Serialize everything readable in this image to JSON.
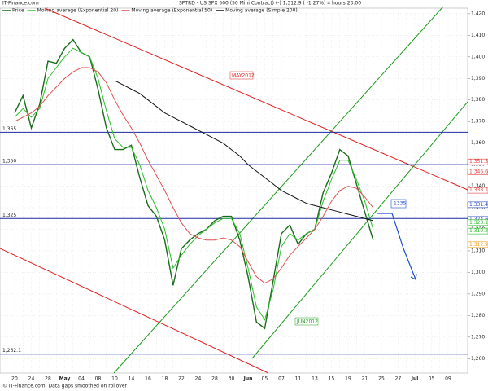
{
  "chart_data": {
    "type": "line",
    "title": "SPTRD - US SPX 500 (50 Mini Contract) (-)    1,312.9 ( -1.27%)    4 hours  23:00",
    "source": "IT-Finance.com",
    "footer": "© IT-Finance.com. Data gaps smoothed on rollover",
    "categories": [
      "20",
      null,
      "24",
      null,
      "28",
      null,
      "May",
      null,
      "04",
      null,
      "08",
      null,
      "10",
      null,
      "14",
      null,
      "16",
      null,
      "18",
      null,
      "22",
      null,
      "24",
      null,
      "28",
      null,
      "30",
      null,
      "Jun",
      null,
      "05",
      null,
      "07",
      null,
      "11",
      null,
      "13",
      null,
      "15",
      null,
      "19",
      null,
      "21",
      null,
      "25",
      null,
      "27",
      null,
      "Jul",
      null,
      "05",
      null,
      "09",
      null
    ],
    "series": [
      {
        "name": "Price",
        "color": "#1a6b1a",
        "values": [
          1374,
          1382,
          1367,
          1378,
          1398,
          1397,
          1404,
          1408,
          1402,
          1400,
          1385,
          1367,
          1357,
          1357,
          1359,
          1344,
          1331,
          1326,
          1315,
          1294,
          1311,
          1315,
          1318,
          1320,
          1324,
          1326,
          1326,
          1315,
          1298,
          1277,
          1274,
          1296,
          1318,
          1322,
          1313,
          1318,
          1320,
          1337,
          1346,
          1357,
          1354,
          1341,
          1328,
          1315,
          null,
          null,
          null,
          null,
          null,
          null,
          null,
          null,
          null,
          null
        ]
      },
      {
        "name": "Moving average (Exponential 20)",
        "color": "#2bbd2b",
        "values": [
          1372,
          1376,
          1372,
          1376,
          1390,
          1395,
          1400,
          1404,
          1402,
          1400,
          1390,
          1375,
          1362,
          1358,
          1358,
          1350,
          1338,
          1330,
          1320,
          1302,
          1308,
          1313,
          1317,
          1320,
          1323,
          1325,
          1325,
          1318,
          1302,
          1284,
          1278,
          1292,
          1312,
          1318,
          1315,
          1318,
          1320,
          1333,
          1343,
          1352,
          1352,
          1343,
          1333,
          1320,
          null,
          null,
          null,
          null,
          null,
          null,
          null,
          null,
          null,
          null
        ]
      },
      {
        "name": "Moving average (Exponential 50)",
        "color": "#e05050",
        "values": [
          1370,
          1372,
          1374,
          1377,
          1382,
          1386,
          1390,
          1393,
          1395,
          1395,
          1393,
          1388,
          1380,
          1373,
          1367,
          1360,
          1352,
          1345,
          1338,
          1330,
          1323,
          1318,
          1316,
          1315,
          1315,
          1316,
          1315,
          1312,
          1305,
          1298,
          1295,
          1297,
          1302,
          1308,
          1312,
          1316,
          1320,
          1326,
          1333,
          1338,
          1340,
          1339,
          1335,
          1330,
          null,
          null,
          null,
          null,
          null,
          null,
          null,
          null,
          null,
          null
        ]
      },
      {
        "name": "Moving average (Simple 200)",
        "color": "#111111",
        "values": [
          null,
          null,
          null,
          null,
          null,
          null,
          null,
          null,
          null,
          null,
          null,
          null,
          1389,
          1387,
          1385,
          1383,
          1380,
          1377,
          1374,
          1372,
          1370,
          1368,
          1366,
          1364,
          1362,
          1360,
          1357,
          1354,
          1350,
          1347,
          1344,
          1341,
          1338,
          1336,
          1334,
          1332,
          1331,
          1330,
          1329,
          1328,
          1327,
          1326,
          1325,
          1324,
          null,
          null,
          null,
          null,
          null,
          null,
          null,
          null,
          null,
          null
        ]
      }
    ],
    "levels": [
      {
        "value": 1365,
        "label": "1,365"
      },
      {
        "value": 1350,
        "label": "1,350"
      },
      {
        "value": 1325,
        "label": "1,325"
      },
      {
        "value": 1262.1,
        "label": "1,262.1"
      }
    ],
    "price_tags": [
      {
        "value": 1351.3,
        "label": "1,351.3",
        "color": "#e04040"
      },
      {
        "value": 1346.6,
        "label": "1,346.6",
        "color": "#e04040"
      },
      {
        "value": 1338.1,
        "label": "1,338.1",
        "color": "#e04040"
      },
      {
        "value": 1331.4,
        "label": "1,331.4",
        "color": "#3050c0"
      },
      {
        "value": 1324.6,
        "label": "1,324.6",
        "color": "#3050c0"
      },
      {
        "value": 1323.1,
        "label": "1,323.1",
        "color": "#2bbd2b"
      },
      {
        "value": 1319.2,
        "label": "1,319.2",
        "color": "#2bbd2b"
      },
      {
        "value": 1312.9,
        "label": "1,312.9",
        "color": "#f0a020"
      }
    ],
    "annotations": [
      "MAY2012",
      "JUN2012",
      "1335"
    ],
    "ylim": [
      1253.3,
      1422.6
    ],
    "yticks": [
      {
        "value": 1260,
        "label": "1,260"
      },
      {
        "value": 1270,
        "label": "1,270"
      },
      {
        "value": 1280,
        "label": "1,280"
      },
      {
        "value": 1290,
        "label": "1,290"
      },
      {
        "value": 1300,
        "label": "1,300"
      },
      {
        "value": 1310,
        "label": "1,310"
      },
      {
        "value": 1320,
        "label": "1,320"
      },
      {
        "value": 1330,
        "label": "1,330"
      },
      {
        "value": 1340,
        "label": "1,340"
      },
      {
        "value": 1350,
        "label": "1,350"
      },
      {
        "value": 1360,
        "label": "1,360"
      },
      {
        "value": 1370,
        "label": "1,370"
      },
      {
        "value": 1380,
        "label": "1,380"
      },
      {
        "value": 1390,
        "label": "1,390"
      },
      {
        "value": 1400,
        "label": "1,400"
      },
      {
        "value": 1410,
        "label": "1,410"
      },
      {
        "value": 1420,
        "label": "1,420"
      }
    ],
    "grid": true
  }
}
